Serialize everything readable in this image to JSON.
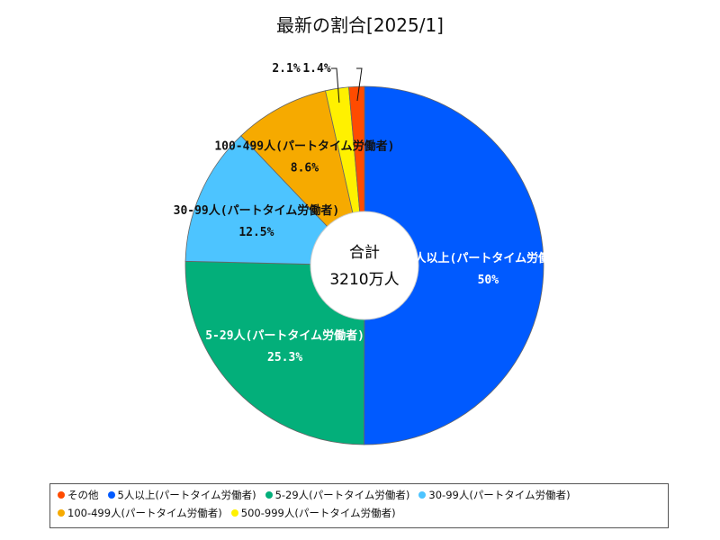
{
  "chart_data": {
    "type": "pie",
    "title": "最新の割合[2025/1]",
    "center": {
      "line1": "合計",
      "line2": "3210万人"
    },
    "slices": [
      {
        "name": "その他",
        "value": 1.4,
        "label_value": "1.4%",
        "color": "#ff4b00"
      },
      {
        "name": "5人以上(パートタイム労働者)",
        "value": 50,
        "label_value": "50%",
        "color": "#005aff"
      },
      {
        "name": "5-29人(パートタイム労働者)",
        "value": 25.3,
        "label_value": "25.3%",
        "color": "#03af7a"
      },
      {
        "name": "30-99人(パートタイム労働者)",
        "value": 12.5,
        "label_value": "12.5%",
        "color": "#4dc4ff"
      },
      {
        "name": "100-499人(パートタイム労働者)",
        "value": 8.6,
        "label_value": "8.6%",
        "color": "#f6aa00"
      },
      {
        "name": "500-999人(パートタイム労働者)",
        "value": 2.1,
        "label_value": "2.1%",
        "color": "#fff100"
      }
    ],
    "slice_labels": {
      "large": [
        "5人以上(パートタイム労働者)",
        "5-29人(パートタイム労働者)",
        "30-99人(パートタイム労働者)",
        "100-499人(パートタイム労働者)"
      ],
      "small": [
        "2.1%",
        "1.4%"
      ]
    },
    "legend": {
      "position": "bottom",
      "items": [
        "その他",
        "5人以上(パートタイム労働者)",
        "5-29人(パートタイム労働者)",
        "30-99人(パートタイム労働者)",
        "100-499人(パートタイム労働者)",
        "500-999人(パートタイム労働者)"
      ]
    }
  }
}
